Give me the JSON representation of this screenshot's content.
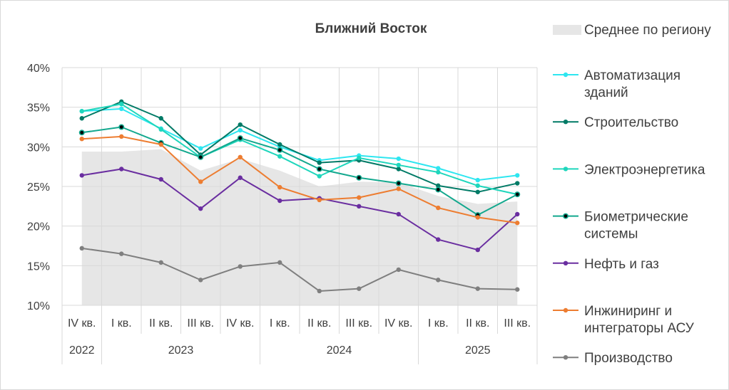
{
  "chart_data": {
    "type": "line",
    "title": "Ближний Восток",
    "yticks": [
      "10%",
      "15%",
      "20%",
      "25%",
      "30%",
      "35%",
      "40%"
    ],
    "ylim": [
      10,
      40
    ],
    "categories": [
      "IV кв.",
      "I кв.",
      "II кв.",
      "III кв.",
      "IV кв.",
      "I кв.",
      "II кв.",
      "III кв.",
      "IV кв.",
      "I кв.",
      "II кв.",
      "III кв."
    ],
    "years": [
      {
        "label": "2022",
        "count": 1
      },
      {
        "label": "2023",
        "count": 4
      },
      {
        "label": "2024",
        "count": 4
      },
      {
        "label": "2025",
        "count": 3
      }
    ],
    "grid": true,
    "legend_position": "right",
    "area": {
      "name": "Среднее по региону",
      "color": "#e6e6e6",
      "values": [
        29.4,
        29.4,
        29.7,
        27.0,
        28.5,
        27.0,
        25.0,
        25.6,
        25.5,
        23.8,
        22.8,
        23.1
      ]
    },
    "series": [
      {
        "name": "Автоматизация зданий",
        "name_lines": [
          "Автоматизация",
          "зданий"
        ],
        "color": "#2ee6f0",
        "marker_border": false,
        "values": [
          34.5,
          34.8,
          32.3,
          29.8,
          32.1,
          30.0,
          28.3,
          28.9,
          28.5,
          27.3,
          25.8,
          26.4
        ]
      },
      {
        "name": "Строительство",
        "name_lines": [
          "Строительство"
        ],
        "color": "#007a66",
        "marker_border": false,
        "values": [
          33.6,
          35.7,
          33.6,
          29.0,
          32.8,
          30.3,
          28.0,
          28.3,
          27.2,
          25.1,
          24.3,
          25.4
        ]
      },
      {
        "name": "Электроэнергетика",
        "name_lines": [
          "Электроэнергетика"
        ],
        "color": "#1ed6bc",
        "marker_border": false,
        "values": [
          34.5,
          35.4,
          32.2,
          28.7,
          30.9,
          28.8,
          26.3,
          28.6,
          27.7,
          26.8,
          25.1,
          24.0
        ]
      },
      {
        "name": "Биометрические системы",
        "name_lines": [
          "Биометрические",
          "системы"
        ],
        "color": "#13a88e",
        "marker_border": true,
        "values": [
          31.8,
          32.5,
          30.5,
          28.7,
          31.1,
          29.6,
          27.2,
          26.1,
          25.4,
          24.6,
          21.4,
          24.0
        ]
      },
      {
        "name": "Нефть и газ",
        "name_lines": [
          "Нефть и газ"
        ],
        "color": "#6a2ea0",
        "marker_border": false,
        "values": [
          26.4,
          27.2,
          25.9,
          22.2,
          26.1,
          23.2,
          23.5,
          22.5,
          21.5,
          18.3,
          17.0,
          21.5
        ]
      },
      {
        "name": "Инжиниринг и интеграторы АСУ",
        "name_lines": [
          "Инжиниринг и",
          "интеграторы АСУ"
        ],
        "color": "#ed7d31",
        "marker_border": false,
        "values": [
          31.0,
          31.3,
          30.3,
          25.6,
          28.7,
          24.9,
          23.3,
          23.6,
          24.7,
          22.3,
          21.1,
          20.4
        ]
      },
      {
        "name": "Производство",
        "name_lines": [
          "Производство"
        ],
        "color": "#7f7f7f",
        "marker_border": false,
        "values": [
          17.2,
          16.5,
          15.4,
          13.2,
          14.9,
          15.4,
          11.8,
          12.1,
          14.5,
          13.2,
          12.1,
          12.0
        ]
      }
    ]
  }
}
